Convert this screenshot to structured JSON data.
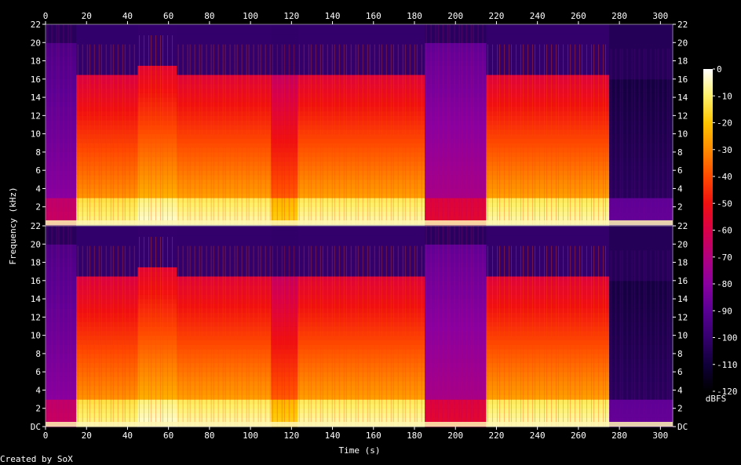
{
  "chart_data": {
    "type": "heatmap",
    "title": "",
    "xlabel": "Time (s)",
    "ylabel": "Frequency (kHz)",
    "xlim": [
      0,
      306
    ],
    "ylim": [
      0,
      22
    ],
    "x_ticks": [
      0,
      20,
      40,
      60,
      80,
      100,
      120,
      140,
      160,
      180,
      200,
      220,
      240,
      260,
      280,
      300
    ],
    "y_ticks_labels_lower": [
      "DC",
      "2",
      "4",
      "6",
      "8",
      "10",
      "12",
      "14",
      "16",
      "18",
      "20",
      "22"
    ],
    "y_ticks_labels_upper": [
      "2",
      "4",
      "6",
      "8",
      "10",
      "12",
      "14",
      "16",
      "18",
      "20",
      "22"
    ],
    "y_ticks_values": [
      0,
      2,
      4,
      6,
      8,
      10,
      12,
      14,
      16,
      18,
      20,
      22
    ],
    "channels": 2,
    "colorbar": {
      "label": "dBFS",
      "range": [
        -120,
        0
      ],
      "ticks": [
        0,
        -10,
        -20,
        -30,
        -40,
        -50,
        -60,
        -70,
        -80,
        -90,
        -100,
        -110,
        -120
      ],
      "colors": [
        "#000000",
        "#10003a",
        "#35006e",
        "#5a0094",
        "#8a00a0",
        "#b2007e",
        "#d80048",
        "#f01010",
        "#ff4a00",
        "#ff8a00",
        "#ffc400",
        "#fff06a",
        "#ffffff"
      ]
    },
    "segments": [
      {
        "start": 0,
        "end": 15,
        "level": 0.35,
        "cutoff_khz": 20
      },
      {
        "start": 15,
        "end": 45,
        "level": 0.82,
        "cutoff_khz": 16.5
      },
      {
        "start": 45,
        "end": 64,
        "level": 0.86,
        "cutoff_khz": 17.5
      },
      {
        "start": 64,
        "end": 110,
        "level": 0.84,
        "cutoff_khz": 16.5
      },
      {
        "start": 110,
        "end": 123,
        "level": 0.74,
        "cutoff_khz": 16.5
      },
      {
        "start": 123,
        "end": 185,
        "level": 0.84,
        "cutoff_khz": 16.5
      },
      {
        "start": 185,
        "end": 215,
        "level": 0.42,
        "cutoff_khz": 20
      },
      {
        "start": 215,
        "end": 275,
        "level": 0.84,
        "cutoff_khz": 16.5
      },
      {
        "start": 275,
        "end": 306,
        "level": 0.15,
        "cutoff_khz": 16
      }
    ]
  },
  "footer": {
    "credit": "Created by SoX"
  }
}
